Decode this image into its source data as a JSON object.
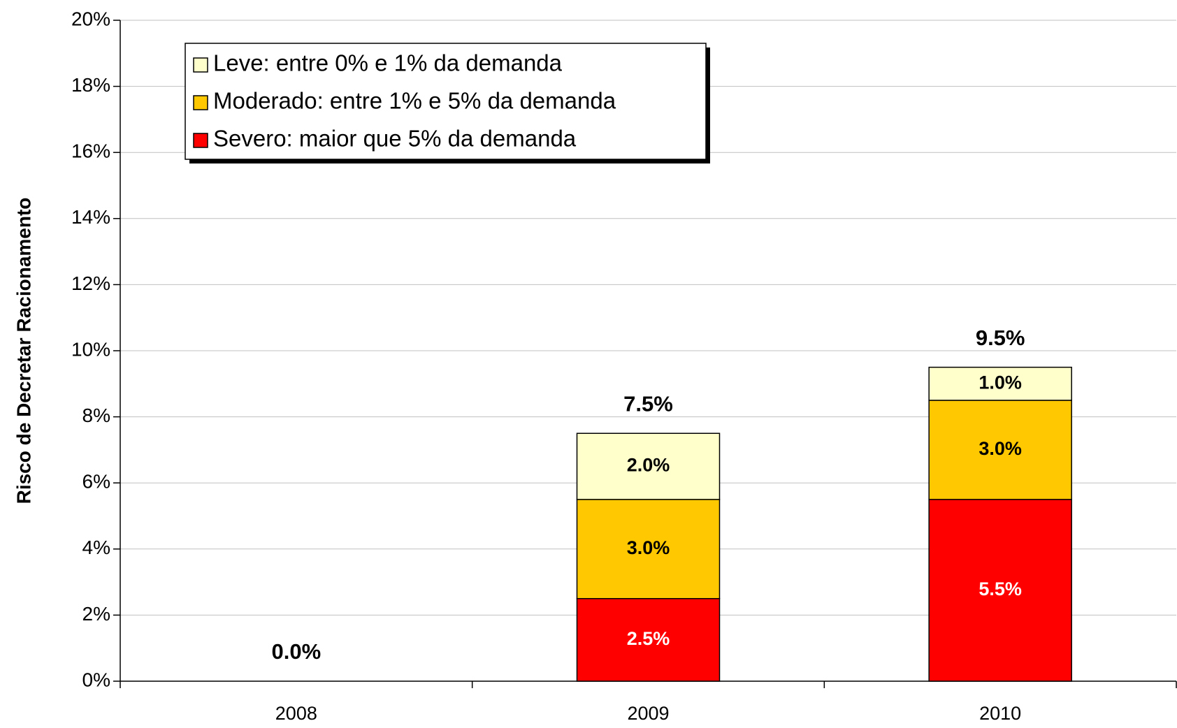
{
  "chart_data": {
    "type": "stacked_bar",
    "y_label": "Risco de Decretar Racionamento",
    "categories": [
      "2008",
      "2009",
      "2010"
    ],
    "series": [
      {
        "name": "Severo: maior que 5% da demanda",
        "color": "#ff0000",
        "label_color": "#ffffff",
        "values": [
          0,
          2.5,
          5.5
        ],
        "value_labels": [
          null,
          "2.5%",
          "5.5%"
        ]
      },
      {
        "name": "Moderado: entre 1% e 5% da demanda",
        "color": "#ffc800",
        "label_color": "#000000",
        "values": [
          0,
          3.0,
          3.0
        ],
        "value_labels": [
          null,
          "3.0%",
          "3.0%"
        ]
      },
      {
        "name": "Leve: entre 0% e 1% da demanda",
        "color": "#ffffcc",
        "label_color": "#000000",
        "values": [
          0,
          2.0,
          1.0
        ],
        "value_labels": [
          null,
          "2.0%",
          "1.0%"
        ]
      }
    ],
    "totals": [
      0,
      7.5,
      9.5
    ],
    "total_labels": [
      "0.0%",
      "7.5%",
      "9.5%"
    ],
    "ylim": [
      0,
      20
    ],
    "yticks": [
      {
        "value": 0,
        "label": "0%"
      },
      {
        "value": 2,
        "label": "2%"
      },
      {
        "value": 4,
        "label": "4%"
      },
      {
        "value": 6,
        "label": "6%"
      },
      {
        "value": 8,
        "label": "8%"
      },
      {
        "value": 10,
        "label": "10%"
      },
      {
        "value": 12,
        "label": "12%"
      },
      {
        "value": 14,
        "label": "14%"
      },
      {
        "value": 16,
        "label": "16%"
      },
      {
        "value": 18,
        "label": "18%"
      },
      {
        "value": 20,
        "label": "20%"
      }
    ],
    "grid": true,
    "legend": "upper left"
  }
}
